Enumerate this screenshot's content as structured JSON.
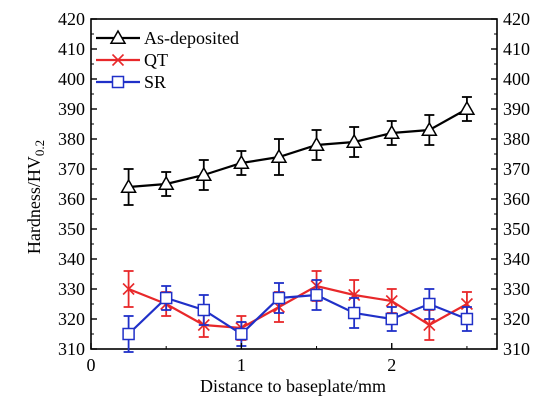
{
  "chart_data": {
    "type": "line",
    "title": "",
    "xlabel": "Distance to baseplate/mm",
    "ylabel": "Hardness/HV",
    "ylabel_sub": "0.2",
    "xlim": [
      0,
      2.7
    ],
    "ylim": [
      310,
      420
    ],
    "xticks": [
      0,
      1,
      2
    ],
    "yticks": [
      310,
      320,
      330,
      340,
      350,
      360,
      370,
      380,
      390,
      400,
      410,
      420
    ],
    "right_axis_ticks": true,
    "grid": false,
    "legend_position": "top-left",
    "series": [
      {
        "name": "As-deposited",
        "color": "#000000",
        "marker": "triangle",
        "x": [
          0.25,
          0.5,
          0.75,
          1.0,
          1.25,
          1.5,
          1.75,
          2.0,
          2.25,
          2.5
        ],
        "y": [
          364,
          365,
          368,
          372,
          374,
          378,
          379,
          382,
          383,
          390
        ],
        "err": [
          6,
          4,
          5,
          4,
          6,
          5,
          5,
          4,
          5,
          4
        ]
      },
      {
        "name": "QT",
        "color": "#e8282a",
        "marker": "x",
        "x": [
          0.25,
          0.5,
          0.75,
          1.0,
          1.25,
          1.5,
          1.75,
          2.0,
          2.25,
          2.5
        ],
        "y": [
          330,
          325,
          318,
          317,
          324,
          331,
          328,
          326,
          318,
          325
        ],
        "err": [
          6,
          4,
          4,
          4,
          5,
          5,
          5,
          4,
          5,
          4
        ]
      },
      {
        "name": "SR",
        "color": "#2030c8",
        "marker": "square",
        "x": [
          0.25,
          0.5,
          0.75,
          1.0,
          1.25,
          1.5,
          1.75,
          2.0,
          2.25,
          2.5
        ],
        "y": [
          315,
          327,
          323,
          315,
          327,
          328,
          322,
          320,
          325,
          320
        ],
        "err": [
          6,
          4,
          5,
          4,
          5,
          5,
          5,
          4,
          5,
          4
        ]
      }
    ]
  }
}
